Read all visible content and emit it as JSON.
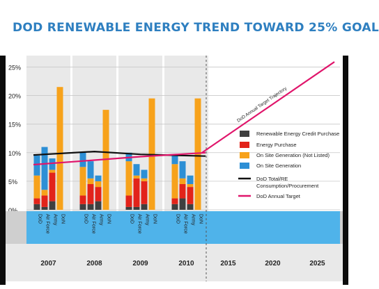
{
  "title": "DOD RENEWABLE ENERGY TREND TOWARD 25% GOAL",
  "chart_data": {
    "type": "bar",
    "title": "DOD RENEWABLE ENERGY TREND TOWARD 25% GOAL",
    "ylim": [
      0,
      27
    ],
    "y_ticks": [
      "0%",
      "5%",
      "10%",
      "15%",
      "20%",
      "25%"
    ],
    "y_tick_values": [
      0,
      5,
      10,
      15,
      20,
      25
    ],
    "grid": true,
    "legend_position": "right",
    "years": [
      "2007",
      "2008",
      "2009",
      "2010",
      "2015",
      "2020",
      "2025"
    ],
    "components": [
      "DoD",
      "Air Force",
      "Army",
      "DoN"
    ],
    "stack_series": [
      {
        "name": "Renewable Energy Credit Purchase",
        "color": "#3f3f3f"
      },
      {
        "name": "Energy Purchase",
        "color": "#e2231a"
      },
      {
        "name": "On Site Generation (Not Listed)",
        "color": "#f7a21b"
      },
      {
        "name": "On Site Generation",
        "color": "#2d8fd5"
      }
    ],
    "bars": [
      {
        "year": "2007",
        "component": "DoD",
        "segments": [
          1.0,
          1.0,
          4.0,
          3.5
        ]
      },
      {
        "year": "2007",
        "component": "Air Force",
        "segments": [
          0.5,
          2.0,
          1.0,
          7.5
        ]
      },
      {
        "year": "2007",
        "component": "Army",
        "segments": [
          1.5,
          5.0,
          0.5,
          2.0
        ]
      },
      {
        "year": "2007",
        "component": "DoN",
        "segments": [
          0,
          0,
          21.5,
          0
        ]
      },
      {
        "year": "2008",
        "component": "DoD",
        "segments": [
          1.0,
          1.5,
          5.0,
          2.5
        ]
      },
      {
        "year": "2008",
        "component": "Air Force",
        "segments": [
          1.0,
          3.5,
          1.0,
          3.0
        ]
      },
      {
        "year": "2008",
        "component": "Army",
        "segments": [
          1.5,
          2.5,
          1.0,
          1.0
        ]
      },
      {
        "year": "2008",
        "component": "DoN",
        "segments": [
          0,
          0,
          17.5,
          0
        ]
      },
      {
        "year": "2009",
        "component": "DoD",
        "segments": [
          0.5,
          2.0,
          6.0,
          1.5
        ]
      },
      {
        "year": "2009",
        "component": "Air Force",
        "segments": [
          0.5,
          5.0,
          0.5,
          2.0
        ]
      },
      {
        "year": "2009",
        "component": "Army",
        "segments": [
          1.0,
          4.0,
          0.5,
          1.5
        ]
      },
      {
        "year": "2009",
        "component": "DoN",
        "segments": [
          0,
          0,
          19.5,
          0
        ]
      },
      {
        "year": "2010",
        "component": "DoD",
        "segments": [
          1.0,
          1.0,
          6.0,
          1.5
        ]
      },
      {
        "year": "2010",
        "component": "Air Force",
        "segments": [
          2.0,
          2.5,
          1.0,
          3.0
        ]
      },
      {
        "year": "2010",
        "component": "Army",
        "segments": [
          1.0,
          3.0,
          0.5,
          1.5
        ]
      },
      {
        "year": "2010",
        "component": "DoN",
        "segments": [
          0,
          0,
          19.5,
          0
        ]
      }
    ],
    "line_series": [
      {
        "name": "DoD Total/RE Consumption/Procurement",
        "color": "#111111",
        "x": [
          "2007",
          "2008",
          "2009",
          "2010"
        ],
        "y": [
          9.6,
          10.2,
          9.7,
          9.4
        ]
      },
      {
        "name": "DoD Annual Target",
        "color": "#e0156b",
        "x": [
          "2007",
          "2008",
          "2009",
          "2010"
        ],
        "y": [
          7.9,
          8.7,
          9.3,
          10.0
        ]
      }
    ],
    "trajectory": {
      "label": "DoD Annual Target Trajectory",
      "color": "#e0156b",
      "x": [
        "2010",
        "2025"
      ],
      "y": [
        10.0,
        25.9
      ]
    }
  }
}
